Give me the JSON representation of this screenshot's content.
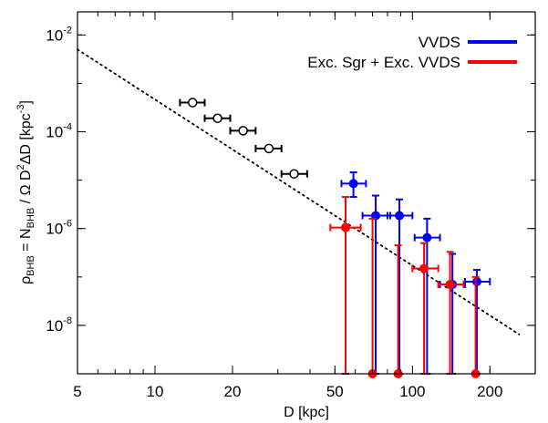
{
  "chart_data": {
    "type": "scatter",
    "xscale": "log",
    "yscale": "log",
    "xlim": [
      5,
      300
    ],
    "ylim": [
      1e-09,
      0.03
    ],
    "grid": false,
    "legend_position": "top-right",
    "xlabel": "D [kpc]",
    "ylabel": {
      "prefix": "ρ",
      "prefix_sub": "BHB",
      "eq": " = N",
      "n_sub": "BHB",
      "mid": " / Ω D",
      "d_sup": "2",
      "tail": "ΔD  [kpc",
      "unit_sup": "-3",
      "close": "]"
    },
    "x_ticks": [
      {
        "value": 5,
        "label": "5"
      },
      {
        "value": 10,
        "label": "10"
      },
      {
        "value": 20,
        "label": "20"
      },
      {
        "value": 50,
        "label": "50"
      },
      {
        "value": 100,
        "label": "100"
      },
      {
        "value": 200,
        "label": "200"
      }
    ],
    "y_ticks": [
      {
        "value": 0.01,
        "base": "10",
        "exp": "-2"
      },
      {
        "value": 0.0001,
        "base": "10",
        "exp": "-4"
      },
      {
        "value": 1e-06,
        "base": "10",
        "exp": "-6"
      },
      {
        "value": 1e-08,
        "base": "10",
        "exp": "-8"
      }
    ],
    "fit_line": {
      "x": [
        5,
        260
      ],
      "y": [
        0.005,
        6.5e-09
      ],
      "style": "dotted",
      "color": "#000000"
    },
    "series": [
      {
        "name": "",
        "color": "#000000",
        "marker": "open-circle",
        "points": [
          {
            "x": 14,
            "y": 0.0004,
            "xerr": [
              12.5,
              15.6
            ]
          },
          {
            "x": 17.5,
            "y": 0.00019,
            "xerr": [
              15.6,
              19.6
            ]
          },
          {
            "x": 22,
            "y": 0.000105,
            "xerr": [
              19.6,
              24.6
            ]
          },
          {
            "x": 27.7,
            "y": 4.5e-05,
            "xerr": [
              24.6,
              31
            ]
          },
          {
            "x": 34.7,
            "y": 1.35e-05,
            "xerr": [
              31,
              39
            ]
          }
        ]
      },
      {
        "name": "VVDS",
        "color": "#0000ff",
        "marker": "filled-circle",
        "points": [
          {
            "x": 59,
            "y": 8.5e-06,
            "xerr": [
              53,
              66
            ],
            "yerr": [
              4.5e-06,
              1.45e-05
            ]
          },
          {
            "x": 72,
            "y": 1.85e-06,
            "xerr": [
              64,
              82
            ],
            "yerr": [
              1e-09,
              4.8e-06
            ]
          },
          {
            "x": 89,
            "y": 1.85e-06,
            "xerr": [
              80,
              100
            ],
            "yerr": [
              1e-09,
              4e-06
            ]
          },
          {
            "x": 114,
            "y": 6.5e-07,
            "xerr": [
              102,
              128
            ],
            "yerr": [
              1e-09,
              1.6e-06
            ]
          },
          {
            "x": 143,
            "y": 7e-08,
            "xerr": [
              128,
              160
            ],
            "yerr": [
              1e-09,
              3e-07
            ]
          },
          {
            "x": 178,
            "y": 8e-08,
            "xerr": [
              160,
              200
            ],
            "yerr": [
              1e-09,
              1.4e-07
            ]
          }
        ]
      },
      {
        "name": "Exc. Sgr + Exc. VVDS",
        "color": "#ff0000",
        "marker": "filled-circle",
        "points": [
          {
            "x": 55,
            "y": 1.05e-06,
            "xerr": [
              48,
              63
            ],
            "yerr": [
              1e-09,
              4.5e-06
            ]
          },
          {
            "x": 70,
            "y": 1e-09,
            "yerr": [
              1e-09,
              1.6e-06
            ]
          },
          {
            "x": 88,
            "y": 1e-09,
            "yerr": [
              1e-09,
              4.5e-07
            ]
          },
          {
            "x": 111,
            "y": 1.5e-07,
            "xerr": [
              100,
              126
            ],
            "yerr": [
              1e-09,
              5e-07
            ]
          },
          {
            "x": 140,
            "y": 7e-08,
            "xerr": [
              126,
              158
            ],
            "yerr": [
              1e-09,
              3.3e-07
            ]
          },
          {
            "x": 176,
            "y": 1e-09,
            "yerr": [
              1e-09,
              1e-07
            ]
          }
        ]
      }
    ]
  }
}
